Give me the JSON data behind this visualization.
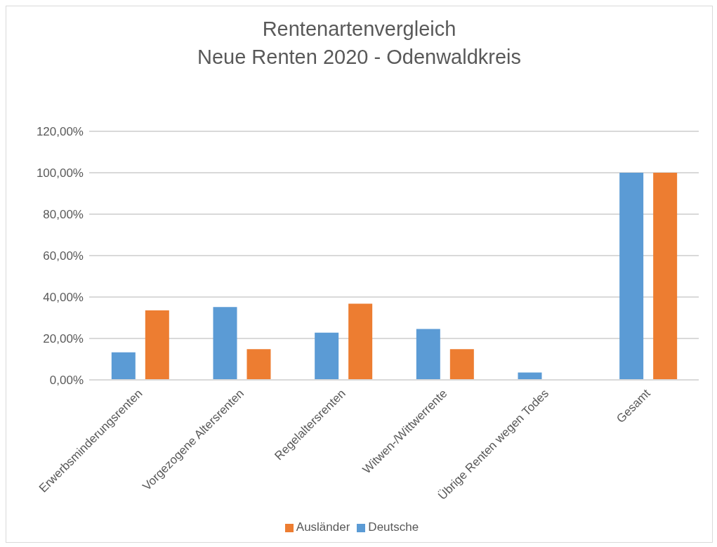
{
  "chart_data": {
    "type": "bar",
    "title": "Rentenartenvergleich\nNeue Renten 2020 - Odenwaldkreis",
    "categories": [
      "Erwerbsminderungsrenten",
      "Vorgezogene Altersrenten",
      "Regelaltersrenten",
      "Witwen-/Wittwerrente",
      "Übrige Renten wegen Todes",
      "Gesamt"
    ],
    "series": [
      {
        "name": "Deutsche",
        "color": "#5b9bd5",
        "values": [
          13.3,
          35.2,
          22.8,
          24.6,
          3.6,
          100
        ]
      },
      {
        "name": "Ausländer",
        "color": "#ed7d31",
        "values": [
          33.6,
          14.8,
          36.8,
          14.8,
          0,
          100
        ]
      }
    ],
    "ylim": [
      0,
      120
    ],
    "yticks": [
      {
        "value": 0,
        "label": "0,00%"
      },
      {
        "value": 20,
        "label": "20,00%"
      },
      {
        "value": 40,
        "label": "40,00%"
      },
      {
        "value": 60,
        "label": "60,00%"
      },
      {
        "value": 80,
        "label": "80,00%"
      },
      {
        "value": 100,
        "label": "100,00%"
      },
      {
        "value": 120,
        "label": "120,00%"
      }
    ],
    "grid": "y",
    "legend": "bottom"
  }
}
